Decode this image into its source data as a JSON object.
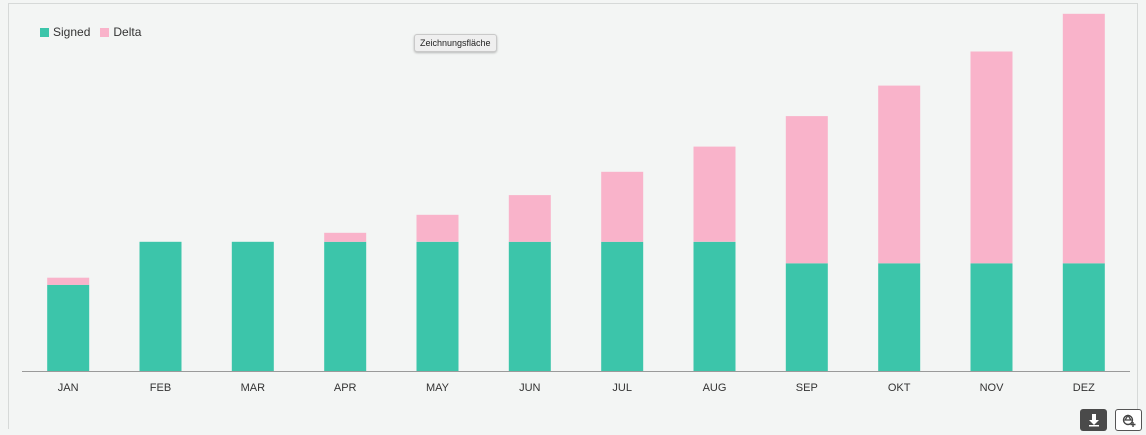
{
  "chart_data": {
    "type": "bar",
    "stacked": true,
    "categories": [
      "JAN",
      "FEB",
      "MAR",
      "APR",
      "MAY",
      "JUN",
      "JUL",
      "AUG",
      "SEP",
      "OKT",
      "NOV",
      "DEZ"
    ],
    "series": [
      {
        "name": "Signed",
        "color": "#3cc5aa",
        "values": [
          24,
          36,
          36,
          36,
          36,
          36,
          36,
          36,
          30,
          30,
          30,
          30
        ]
      },
      {
        "name": "Delta",
        "color": "#f9b3ca",
        "values": [
          2,
          0,
          0,
          2.5,
          7.5,
          13,
          19.5,
          26.5,
          41,
          49.5,
          59,
          69.5
        ]
      }
    ],
    "ylim": [
      0,
      100
    ],
    "grid": false,
    "legend_position": "top-left",
    "title": "",
    "xlabel": "",
    "ylabel": ""
  },
  "tooltip": {
    "text": "Zeichnungsfläche"
  },
  "toolbar": {
    "download_icon": "download-icon",
    "share_icon": "share-icon"
  }
}
